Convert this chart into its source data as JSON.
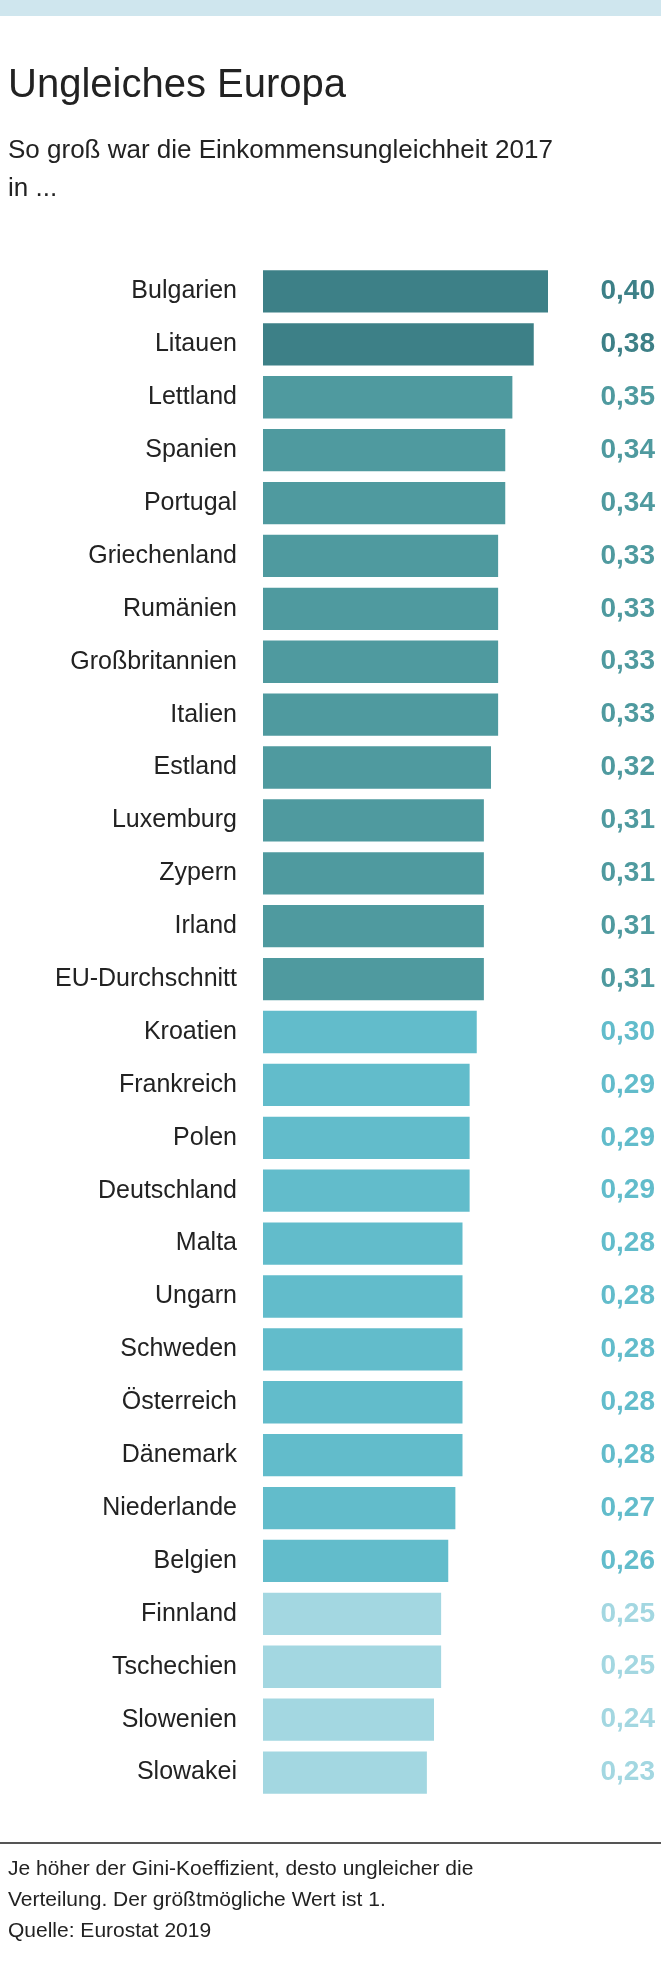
{
  "chart_data": {
    "type": "bar",
    "orientation": "horizontal",
    "title": "Ungleiches Europa",
    "subtitle": "So groß war die Einkommensungleichheit 2017 in ...",
    "categories": [
      "Bulgarien",
      "Litauen",
      "Lettland",
      "Spanien",
      "Portugal",
      "Griechenland",
      "Rumänien",
      "Großbritannien",
      "Italien",
      "Estland",
      "Luxemburg",
      "Zypern",
      "Irland",
      "EU-Durchschnitt",
      "Kroatien",
      "Frankreich",
      "Polen",
      "Deutschland",
      "Malta",
      "Ungarn",
      "Schweden",
      "Österreich",
      "Dänemark",
      "Niederlande",
      "Belgien",
      "Finnland",
      "Tschechien",
      "Slowenien",
      "Slowakei"
    ],
    "values": [
      0.4,
      0.38,
      0.35,
      0.34,
      0.34,
      0.33,
      0.33,
      0.33,
      0.33,
      0.32,
      0.31,
      0.31,
      0.31,
      0.31,
      0.3,
      0.29,
      0.29,
      0.29,
      0.28,
      0.28,
      0.28,
      0.28,
      0.28,
      0.27,
      0.26,
      0.25,
      0.25,
      0.24,
      0.23
    ],
    "value_labels": [
      "0,40",
      "0,38",
      "0,35",
      "0,34",
      "0,34",
      "0,33",
      "0,33",
      "0,33",
      "0,33",
      "0,32",
      "0,31",
      "0,31",
      "0,31",
      "0,31",
      "0,30",
      "0,29",
      "0,29",
      "0,29",
      "0,28",
      "0,28",
      "0,28",
      "0,28",
      "0,28",
      "0,27",
      "0,26",
      "0,25",
      "0,25",
      "0,24",
      "0,23"
    ],
    "colors": [
      "#3d8087",
      "#3d8087",
      "#4f9a9f",
      "#4f9a9f",
      "#4f9a9f",
      "#4f9a9f",
      "#4f9a9f",
      "#4f9a9f",
      "#4f9a9f",
      "#4f9a9f",
      "#4f9a9f",
      "#4f9a9f",
      "#4f9a9f",
      "#4f9a9f",
      "#62bccb",
      "#62bccb",
      "#62bccb",
      "#62bccb",
      "#62bccb",
      "#62bccb",
      "#62bccb",
      "#62bccb",
      "#62bccb",
      "#62bccb",
      "#62bccb",
      "#a3d7e1",
      "#a3d7e1",
      "#a3d7e1",
      "#a3d7e1"
    ],
    "annotations": [
      "Je höher der Gini-Koeffizient, desto ungleicher die Verteilung. Der größtmögliche Wert ist 1.",
      "Quelle: Eurostat 2019"
    ]
  }
}
